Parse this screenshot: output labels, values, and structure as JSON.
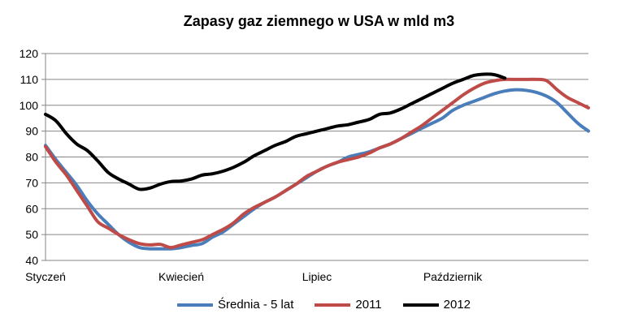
{
  "chart_data": {
    "type": "line",
    "title": "Zapasy gaz ziemnego w USA  w mld m3",
    "xlabel": "",
    "ylabel": "",
    "ylim": [
      40,
      120
    ],
    "yticks": [
      40,
      50,
      60,
      70,
      80,
      90,
      100,
      110,
      120
    ],
    "grid": true,
    "legend": "bottom",
    "x_tick_labels": [
      {
        "label": "Styczeń",
        "week": 1
      },
      {
        "label": "Kwiecień",
        "week": 14
      },
      {
        "label": "Lipiec",
        "week": 27
      },
      {
        "label": "Październik",
        "week": 40
      }
    ],
    "x_range": [
      1,
      53
    ],
    "series": [
      {
        "name": "Średnia - 5 lat",
        "color": "#4a7ebb",
        "x": [
          1,
          2,
          3,
          4,
          5,
          6,
          7,
          8,
          9,
          10,
          11,
          12,
          13,
          14,
          15,
          16,
          17,
          18,
          19,
          20,
          21,
          22,
          23,
          24,
          25,
          26,
          27,
          28,
          29,
          30,
          31,
          32,
          33,
          34,
          35,
          36,
          37,
          38,
          39,
          40,
          41,
          42,
          43,
          44,
          45,
          46,
          47,
          48,
          49,
          50,
          51,
          52,
          53
        ],
        "values": [
          84.5,
          79,
          74,
          69,
          63,
          58,
          54,
          50,
          47,
          45,
          44.5,
          44.5,
          44.5,
          45,
          45.8,
          46.5,
          49,
          51,
          54,
          57,
          60,
          62.5,
          64.5,
          67,
          69.5,
          72,
          74.5,
          76.5,
          78,
          80,
          81,
          82,
          83.5,
          85,
          87,
          89,
          91,
          93,
          95,
          98,
          100,
          101.5,
          103,
          104.5,
          105.5,
          106,
          105.8,
          105,
          103.5,
          101,
          97,
          93,
          90
        ]
      },
      {
        "name": "2011",
        "color": "#be4b48",
        "x": [
          1,
          2,
          3,
          4,
          5,
          6,
          7,
          8,
          9,
          10,
          11,
          12,
          13,
          14,
          15,
          16,
          17,
          18,
          19,
          20,
          21,
          22,
          23,
          24,
          25,
          26,
          27,
          28,
          29,
          30,
          31,
          32,
          33,
          34,
          35,
          36,
          37,
          38,
          39,
          40,
          41,
          42,
          43,
          44,
          45,
          46,
          47,
          48,
          49,
          50,
          51,
          52,
          53
        ],
        "values": [
          84,
          78,
          73,
          67,
          61,
          55,
          52.5,
          50,
          48,
          46.5,
          46,
          46.2,
          45,
          46,
          47,
          48,
          50,
          52,
          54.5,
          58,
          60.5,
          62.5,
          64.5,
          67,
          69.5,
          72.5,
          74.5,
          76.5,
          78,
          79,
          80,
          81.5,
          83.5,
          85,
          87,
          89.5,
          92,
          95,
          98,
          101,
          104,
          106.5,
          108.5,
          109.5,
          110,
          110,
          110,
          110,
          109.5,
          106,
          103,
          101,
          99
        ]
      },
      {
        "name": "2012",
        "color": "#000000",
        "x": [
          1,
          2,
          3,
          4,
          5,
          6,
          7,
          8,
          9,
          10,
          11,
          12,
          13,
          14,
          15,
          16,
          17,
          18,
          19,
          20,
          21,
          22,
          23,
          24,
          25,
          26,
          27,
          28,
          29,
          30,
          31,
          32,
          33,
          34,
          35,
          36,
          37,
          38,
          39,
          40,
          41,
          42,
          43,
          44,
          45,
          46,
          47
        ],
        "values": [
          96.5,
          94,
          89,
          85,
          82.5,
          78.5,
          74,
          71.5,
          69.5,
          67.5,
          68,
          69.5,
          70.5,
          70.7,
          71.5,
          73,
          73.5,
          74.5,
          76,
          78,
          80.5,
          82.5,
          84.5,
          86,
          88,
          89,
          90,
          91,
          92,
          92.5,
          93.5,
          94.5,
          96.5,
          97,
          98.5,
          100.5,
          102.5,
          104.5,
          106.5,
          108.5,
          110,
          111.5,
          112,
          111.8,
          110.5,
          null,
          null
        ]
      }
    ]
  }
}
